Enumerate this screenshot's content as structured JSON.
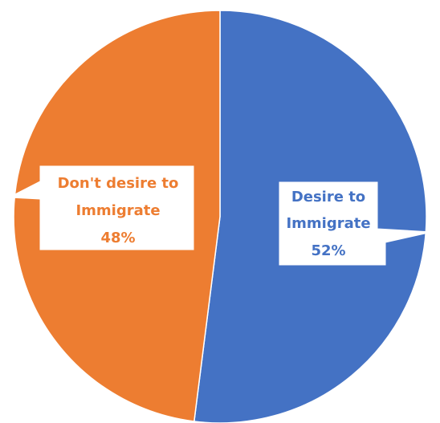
{
  "chart_data": {
    "type": "pie",
    "title": "",
    "slices": [
      {
        "label_line1": "Desire to",
        "label_line2": "Immigrate",
        "value": 52,
        "value_label": "52%",
        "color": "#4472C4"
      },
      {
        "label_line1": "Don't desire to",
        "label_line2": "Immigrate",
        "value": 48,
        "value_label": "48%",
        "color": "#ED7D31"
      }
    ],
    "start_angle_deg": 0,
    "direction": "clockwise",
    "legend": "none",
    "data_labels": "callouts",
    "slice_border_color": "#ffffff"
  }
}
